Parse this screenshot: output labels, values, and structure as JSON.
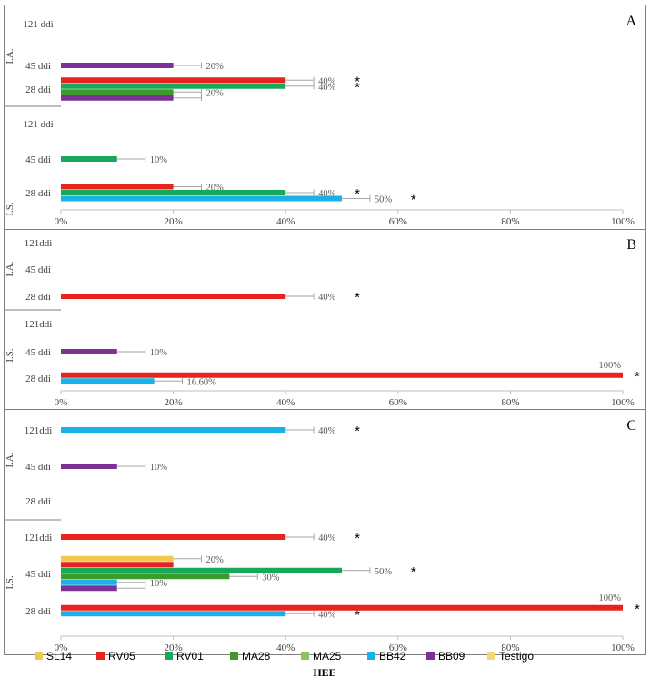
{
  "chart_data": {
    "type": "bar",
    "orientation": "horizontal",
    "xlabel": "HEE",
    "xlim": [
      0,
      100
    ],
    "xticks": [
      "0%",
      "20%",
      "40%",
      "60%",
      "80%",
      "100%"
    ],
    "legend": {
      "placement": "bottom",
      "entries": [
        {
          "name": "SL14",
          "color": "#f2c94c"
        },
        {
          "name": "RV05",
          "color": "#e8231f"
        },
        {
          "name": "RV01",
          "color": "#18a85a"
        },
        {
          "name": "MA28",
          "color": "#3f9a2c"
        },
        {
          "name": "MA25",
          "color": "#86c65a"
        },
        {
          "name": "BB42",
          "color": "#1ab0e8"
        },
        {
          "name": "BB09",
          "color": "#7a3296"
        },
        {
          "name": "Testigo",
          "color": "#f5d77a"
        }
      ]
    },
    "panels": [
      {
        "letter": "A",
        "groups": [
          {
            "name": "I.A.",
            "categories": [
              {
                "label": "121 ddi",
                "bars": []
              },
              {
                "label": "45 ddi",
                "bars": [
                  {
                    "series": "BB09",
                    "value": 20,
                    "error": 5,
                    "label": "20%",
                    "star": false
                  }
                ]
              },
              {
                "label": "28 ddi",
                "bars": [
                  {
                    "series": "RV05",
                    "value": 40,
                    "error": 5,
                    "label": "40%",
                    "star": true
                  },
                  {
                    "series": "RV01",
                    "value": 40,
                    "error": 5,
                    "label": "40%",
                    "star": true
                  },
                  {
                    "series": "MA28",
                    "value": 20,
                    "error": 5,
                    "label": "20%",
                    "star": false
                  },
                  {
                    "series": "BB09",
                    "value": 20,
                    "error": 5,
                    "label": "",
                    "star": false
                  }
                ]
              }
            ]
          },
          {
            "name": "I.S.",
            "categories": [
              {
                "label": "121 ddi",
                "bars": []
              },
              {
                "label": "45 ddi",
                "bars": [
                  {
                    "series": "RV01",
                    "value": 10,
                    "error": 5,
                    "label": "10%",
                    "star": false
                  }
                ]
              },
              {
                "label": "28 ddi",
                "bars": [
                  {
                    "series": "RV05",
                    "value": 20,
                    "error": 5,
                    "label": "20%",
                    "star": false
                  },
                  {
                    "series": "RV01",
                    "value": 40,
                    "error": 5,
                    "label": "40%",
                    "star": true
                  },
                  {
                    "series": "BB42",
                    "value": 50,
                    "error": 5,
                    "label": "50%",
                    "star": true
                  }
                ]
              }
            ]
          }
        ]
      },
      {
        "letter": "B",
        "groups": [
          {
            "name": "I.A.",
            "categories": [
              {
                "label": "121ddi",
                "bars": []
              },
              {
                "label": "45 ddi",
                "bars": []
              },
              {
                "label": "28 ddi",
                "bars": [
                  {
                    "series": "RV05",
                    "value": 40,
                    "error": 5,
                    "label": "40%",
                    "star": true
                  }
                ]
              }
            ]
          },
          {
            "name": "I.S.",
            "categories": [
              {
                "label": "121ddi",
                "bars": []
              },
              {
                "label": "45 ddi",
                "bars": [
                  {
                    "series": "BB09",
                    "value": 10,
                    "error": 5,
                    "label": "10%",
                    "star": false
                  }
                ]
              },
              {
                "label": "28 ddi",
                "bars": [
                  {
                    "series": "RV05",
                    "value": 100,
                    "error": 0,
                    "label": "100%",
                    "star": true
                  },
                  {
                    "series": "BB42",
                    "value": 16.6,
                    "error": 5,
                    "label": "16.60%",
                    "star": false
                  }
                ]
              }
            ]
          }
        ]
      },
      {
        "letter": "C",
        "groups": [
          {
            "name": "I.A.",
            "categories": [
              {
                "label": "121ddi",
                "bars": [
                  {
                    "series": "BB42",
                    "value": 40,
                    "error": 5,
                    "label": "40%",
                    "star": true
                  }
                ]
              },
              {
                "label": "45 ddi",
                "bars": [
                  {
                    "series": "BB09",
                    "value": 10,
                    "error": 5,
                    "label": "10%",
                    "star": false
                  }
                ]
              },
              {
                "label": "28 ddi",
                "bars": []
              }
            ]
          },
          {
            "name": "I.S.",
            "categories": [
              {
                "label": "121ddi",
                "bars": [
                  {
                    "series": "RV05",
                    "value": 40,
                    "error": 5,
                    "label": "40%",
                    "star": true
                  }
                ]
              },
              {
                "label": "45 ddi",
                "bars": [
                  {
                    "series": "SL14",
                    "value": 20,
                    "error": 5,
                    "label": "20%",
                    "star": false
                  },
                  {
                    "series": "RV05",
                    "value": 20,
                    "error": 0,
                    "label": "",
                    "star": false
                  },
                  {
                    "series": "RV01",
                    "value": 50,
                    "error": 5,
                    "label": "50%",
                    "star": true
                  },
                  {
                    "series": "MA28",
                    "value": 30,
                    "error": 5,
                    "label": "30%",
                    "star": false
                  },
                  {
                    "series": "BB42",
                    "value": 10,
                    "error": 5,
                    "label": "10%",
                    "star": false
                  },
                  {
                    "series": "BB09",
                    "value": 10,
                    "error": 5,
                    "label": "",
                    "star": false
                  }
                ]
              },
              {
                "label": "28 ddi",
                "bars": [
                  {
                    "series": "RV05",
                    "value": 100,
                    "error": 0,
                    "label": "100%",
                    "star": true
                  },
                  {
                    "series": "BB42",
                    "value": 40,
                    "error": 5,
                    "label": "40%",
                    "star": true
                  }
                ]
              }
            ]
          }
        ]
      }
    ]
  }
}
